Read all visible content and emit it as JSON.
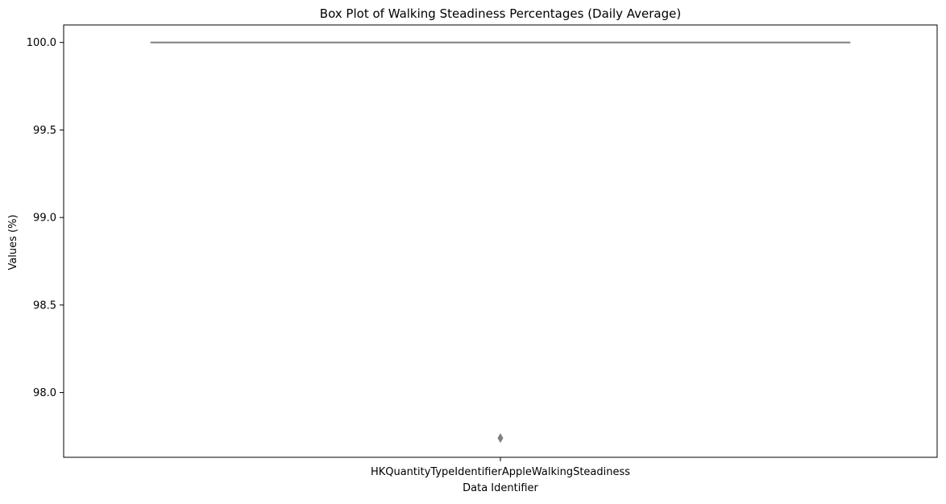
{
  "chart_data": {
    "type": "box",
    "title": "Box Plot of Walking Steadiness Percentages (Daily Average)",
    "xlabel": "Data Identifier",
    "ylabel": "Values (%)",
    "categories": [
      "HKQuantityTypeIdentifierAppleWalkingSteadiness"
    ],
    "boxes": [
      {
        "category": "HKQuantityTypeIdentifierAppleWalkingSteadiness",
        "min": 100.0,
        "q1": 100.0,
        "median": 100.0,
        "q3": 100.0,
        "max": 100.0,
        "outliers": [
          97.74
        ]
      }
    ],
    "ylim": [
      97.63,
      100.1
    ],
    "yticks": [
      98.0,
      98.5,
      99.0,
      99.5,
      100.0
    ],
    "ytick_labels": [
      "98.0",
      "98.5",
      "99.0",
      "99.5",
      "100.0"
    ],
    "grid": false,
    "colors": {
      "box": "#808080",
      "outlier": "#808080",
      "axes": "#000000"
    }
  }
}
